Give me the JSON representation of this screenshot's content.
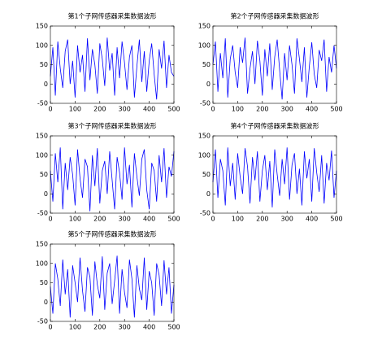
{
  "chart_data": [
    {
      "type": "line",
      "title": "第1个子网传感器采集数据波形",
      "color": "#0000ff",
      "x": [
        0,
        10,
        20,
        30,
        40,
        50,
        60,
        70,
        80,
        90,
        100,
        110,
        120,
        130,
        140,
        150,
        160,
        170,
        180,
        190,
        200,
        210,
        220,
        230,
        240,
        250,
        260,
        270,
        280,
        290,
        300,
        310,
        320,
        330,
        340,
        350,
        360,
        370,
        380,
        390,
        400,
        410,
        420,
        430,
        440,
        450,
        460,
        470,
        480,
        490,
        500
      ],
      "values": [
        20,
        95,
        -30,
        110,
        40,
        -10,
        85,
        115,
        0,
        60,
        -35,
        100,
        30,
        75,
        -20,
        118,
        10,
        90,
        50,
        -25,
        105,
        65,
        -5,
        120,
        35,
        80,
        -30,
        95,
        15,
        110,
        55,
        -15,
        70,
        100,
        -35,
        45,
        115,
        5,
        85,
        -20,
        60,
        105,
        25,
        -40,
        90,
        40,
        112,
        -10,
        75,
        30,
        20
      ],
      "xlim": [
        0,
        500
      ],
      "xticks": [
        0,
        100,
        200,
        300,
        400,
        500
      ],
      "ylim": [
        -50,
        150
      ],
      "yticks": [
        -50,
        0,
        50,
        100,
        150
      ]
    },
    {
      "type": "line",
      "title": "第2个子网传感器采集数据波形",
      "color": "#0000ff",
      "x": [
        0,
        10,
        20,
        30,
        40,
        50,
        60,
        70,
        80,
        90,
        100,
        110,
        120,
        130,
        140,
        150,
        160,
        170,
        180,
        190,
        200,
        210,
        220,
        230,
        240,
        250,
        260,
        270,
        280,
        290,
        300,
        310,
        320,
        330,
        340,
        350,
        360,
        370,
        380,
        390,
        400,
        410,
        420,
        430,
        440,
        450,
        460,
        470,
        480,
        490,
        500
      ],
      "values": [
        50,
        110,
        -20,
        80,
        15,
        118,
        -35,
        65,
        100,
        30,
        -10,
        95,
        55,
        120,
        -25,
        40,
        85,
        0,
        112,
        60,
        -30,
        90,
        20,
        105,
        -15,
        70,
        115,
        35,
        -40,
        80,
        10,
        100,
        50,
        -25,
        118,
        65,
        5,
        95,
        -35,
        45,
        108,
        25,
        -10,
        88,
        60,
        115,
        -20,
        70,
        30,
        100,
        40
      ],
      "xlim": [
        0,
        500
      ],
      "xticks": [
        0,
        100,
        200,
        300,
        400,
        500
      ],
      "ylim": [
        -50,
        150
      ],
      "yticks": [
        -50,
        0,
        50,
        100,
        150
      ]
    },
    {
      "type": "line",
      "title": "第3个子网传感器采集数据波形",
      "color": "#0000ff",
      "x": [
        0,
        10,
        20,
        30,
        40,
        50,
        60,
        70,
        80,
        90,
        100,
        110,
        120,
        130,
        140,
        150,
        160,
        170,
        180,
        190,
        200,
        210,
        220,
        230,
        240,
        250,
        260,
        270,
        280,
        290,
        300,
        310,
        320,
        330,
        340,
        350,
        360,
        370,
        380,
        390,
        400,
        410,
        420,
        430,
        440,
        450,
        460,
        470,
        480,
        490,
        500
      ],
      "values": [
        60,
        -20,
        105,
        30,
        120,
        -40,
        80,
        10,
        95,
        50,
        -30,
        115,
        40,
        -10,
        90,
        70,
        -45,
        100,
        20,
        118,
        -25,
        60,
        85,
        0,
        110,
        35,
        -40,
        95,
        55,
        -15,
        120,
        25,
        75,
        -35,
        105,
        45,
        -5,
        90,
        115,
        10,
        -40,
        80,
        60,
        -20,
        100,
        30,
        118,
        -10,
        70,
        45,
        110
      ],
      "xlim": [
        0,
        500
      ],
      "xticks": [
        0,
        100,
        200,
        300,
        400,
        500
      ],
      "ylim": [
        -50,
        150
      ],
      "yticks": [
        -50,
        0,
        50,
        100,
        150
      ]
    },
    {
      "type": "line",
      "title": "第4个子网传感器采集数据波形",
      "color": "#0000ff",
      "x": [
        0,
        10,
        20,
        30,
        40,
        50,
        60,
        70,
        80,
        90,
        100,
        110,
        120,
        130,
        140,
        150,
        160,
        170,
        180,
        190,
        200,
        210,
        220,
        230,
        240,
        250,
        260,
        270,
        280,
        290,
        300,
        310,
        320,
        330,
        340,
        350,
        360,
        370,
        380,
        390,
        400,
        410,
        420,
        430,
        440,
        450,
        460,
        470,
        480,
        490,
        500
      ],
      "values": [
        30,
        115,
        -10,
        90,
        60,
        -30,
        120,
        20,
        80,
        -15,
        105,
        45,
        0,
        118,
        70,
        -25,
        95,
        35,
        110,
        -20,
        60,
        100,
        10,
        85,
        -35,
        115,
        50,
        -5,
        90,
        25,
        120,
        -15,
        75,
        105,
        0,
        65,
        -30,
        110,
        40,
        90,
        -20,
        118,
        55,
        5,
        100,
        -25,
        80,
        35,
        112,
        -10,
        60
      ],
      "xlim": [
        0,
        500
      ],
      "xticks": [
        0,
        100,
        200,
        300,
        400,
        500
      ],
      "ylim": [
        -50,
        150
      ],
      "yticks": [
        -50,
        0,
        50,
        100,
        150
      ]
    },
    {
      "type": "line",
      "title": "第5个子网传感器采集数据波形",
      "color": "#0000ff",
      "x": [
        0,
        10,
        20,
        30,
        40,
        50,
        60,
        70,
        80,
        90,
        100,
        110,
        120,
        130,
        140,
        150,
        160,
        170,
        180,
        190,
        200,
        210,
        220,
        230,
        240,
        250,
        260,
        270,
        280,
        290,
        300,
        310,
        320,
        330,
        340,
        350,
        360,
        370,
        380,
        390,
        400,
        410,
        420,
        430,
        440,
        450,
        460,
        470,
        480,
        490,
        500
      ],
      "values": [
        40,
        -30,
        100,
        60,
        -10,
        110,
        20,
        85,
        -40,
        95,
        50,
        0,
        115,
        30,
        -25,
        90,
        65,
        -35,
        105,
        45,
        10,
        118,
        -20,
        75,
        100,
        -5,
        55,
        120,
        -30,
        85,
        25,
        -15,
        110,
        60,
        -40,
        95,
        35,
        5,
        115,
        -20,
        80,
        50,
        -35,
        100,
        70,
        -10,
        108,
        20,
        90,
        -30,
        45
      ],
      "xlim": [
        0,
        500
      ],
      "xticks": [
        0,
        100,
        200,
        300,
        400,
        500
      ],
      "ylim": [
        -50,
        150
      ],
      "yticks": [
        -50,
        0,
        50,
        100,
        150
      ]
    }
  ]
}
